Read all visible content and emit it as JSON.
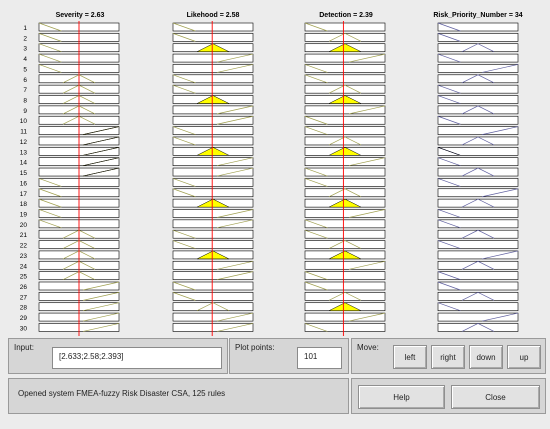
{
  "titles": [
    "Severity = 2.63",
    "Likehood = 2.58",
    "Detection = 2.39",
    "Risk_Priority_Number = 34"
  ],
  "row_labels": [
    "1",
    "2",
    "3",
    "4",
    "5",
    "6",
    "7",
    "8",
    "9",
    "10",
    "11",
    "12",
    "13",
    "14",
    "15",
    "16",
    "17",
    "18",
    "19",
    "20",
    "21",
    "22",
    "23",
    "24",
    "25",
    "26",
    "27",
    "28",
    "29",
    "30"
  ],
  "line_fractions": [
    0.5,
    0.49,
    0.48
  ],
  "fills": {
    "severity": [
      11,
      12,
      13,
      14,
      15
    ],
    "likehood": [
      3,
      8,
      13,
      18,
      23
    ],
    "detection": [
      3,
      8,
      13,
      18,
      23,
      28
    ],
    "rpn": [
      13
    ]
  },
  "colors": {
    "fill": "#ffff00",
    "line": "#ff0000",
    "rpn_fill": "#0000ff",
    "mf": "#a0a050",
    "rpn_mf": "#6060a0"
  },
  "input": {
    "label": "Input:",
    "value": "[2.633;2.58;2.393]"
  },
  "plot": {
    "label": "Plot points:",
    "value": "101"
  },
  "move": {
    "label": "Move:",
    "buttons": [
      "left",
      "right",
      "down",
      "up"
    ]
  },
  "status": "Opened system FMEA-fuzzy Risk Disaster CSA, 125 rules",
  "help_label": "Help",
  "close_label": "Close"
}
